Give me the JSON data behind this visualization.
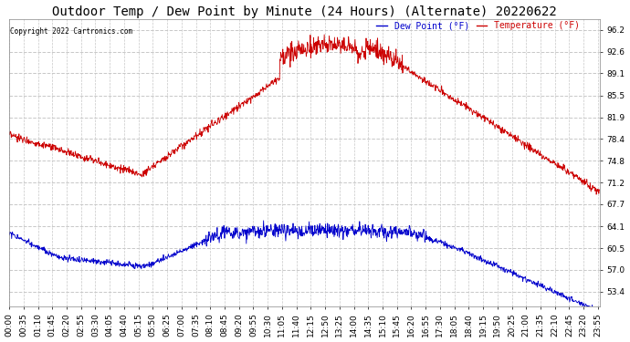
{
  "title": "Outdoor Temp / Dew Point by Minute (24 Hours) (Alternate) 20220622",
  "copyright": "Copyright 2022 Cartronics.com",
  "legend_dew": "Dew Point (°F)",
  "legend_temp": "Temperature (°F)",
  "yticks": [
    53.4,
    57.0,
    60.5,
    64.1,
    67.7,
    71.2,
    74.8,
    78.4,
    81.9,
    85.5,
    89.1,
    92.6,
    96.2
  ],
  "ylim": [
    51.0,
    98.0
  ],
  "background_color": "#ffffff",
  "plot_bg_color": "#ffffff",
  "temp_color": "#cc0000",
  "dew_color": "#0000cc",
  "grid_color": "#c8c8c8",
  "title_fontsize": 10,
  "tick_fontsize": 6.5
}
